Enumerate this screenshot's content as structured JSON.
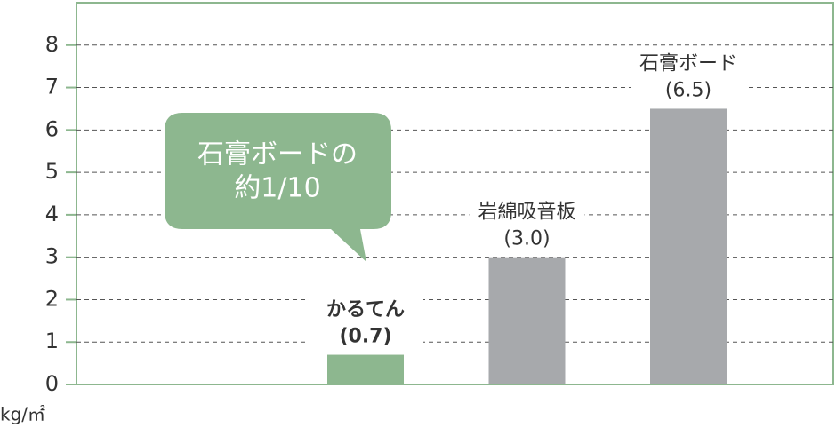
{
  "chart_data": {
    "type": "bar",
    "y_label": "kg/㎡",
    "categories": [
      "かるてん",
      "岩綿吸音板",
      "石膏ボード"
    ],
    "values": [
      0.7,
      3.0,
      6.5
    ],
    "value_labels": [
      "(0.7)",
      "(3.0)",
      "(6.5)"
    ],
    "colors": [
      "#8db78f",
      "#a7a9ac",
      "#a7a9ac"
    ],
    "ylim": [
      0,
      9
    ],
    "yticks": [
      0,
      1,
      2,
      3,
      4,
      5,
      6,
      7,
      8
    ],
    "grid": true,
    "annotation": {
      "lines": [
        "石膏ボードの",
        "約1/10"
      ],
      "color": "#8db78f"
    }
  }
}
